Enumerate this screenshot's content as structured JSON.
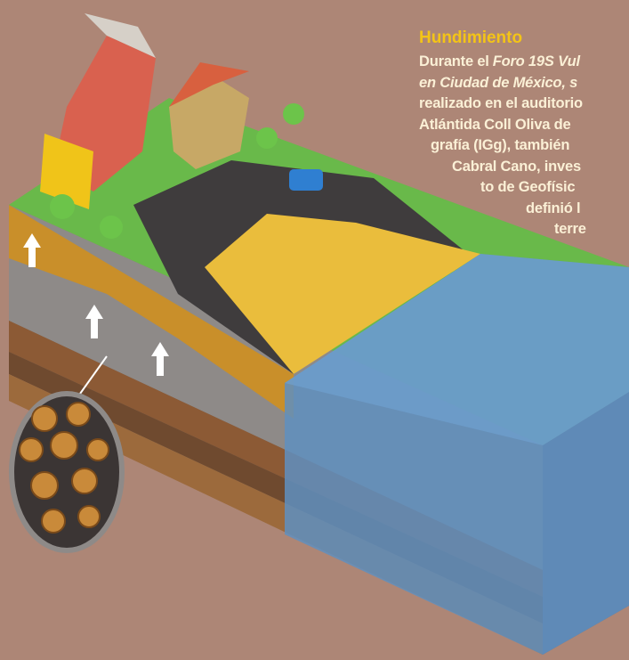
{
  "article": {
    "title": "Hundimiento",
    "lines": [
      [
        "Durante el",
        "Foro 19S Vul"
      ],
      [
        "en Ciudad de México, s"
      ],
      [
        "realizado en el auditorio"
      ],
      [
        "Atlántida Coll Oliva de"
      ],
      [
        "grafía (IGg), también"
      ],
      [
        "Cabral Cano, inves"
      ],
      [
        "to de Geofísic"
      ],
      [
        "definió l"
      ],
      [
        "terre"
      ]
    ]
  }
}
